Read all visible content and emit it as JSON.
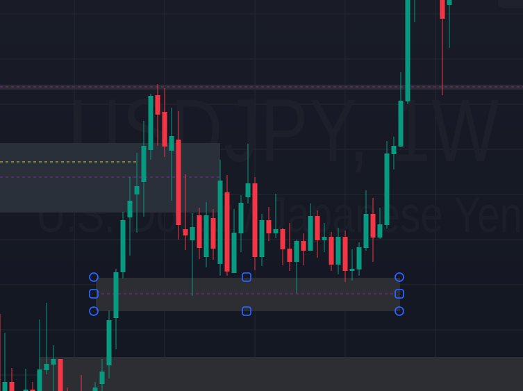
{
  "watermark": {
    "symbol": "USDJPY, 1W",
    "description": "U.S. Dollar / Japanese Yen"
  },
  "colors": {
    "up": "#089981",
    "down": "#f23645",
    "handle": "#2962ff",
    "zone_line": "#9c27b0",
    "level_line": "#ffeb3b"
  },
  "chart_data": {
    "type": "candlestick",
    "title": "",
    "ylim": [
      137.48,
      160.0
    ],
    "grid": true,
    "candles": [
      {
        "w": 0,
        "o": 141.92,
        "h": 141.92,
        "l": 136.0,
        "c": 136.4
      },
      {
        "w": 1,
        "o": 136.8,
        "h": 140.84,
        "l": 136.6,
        "c": 138.0
      },
      {
        "w": 2,
        "o": 138.0,
        "h": 138.8,
        "l": 136.8,
        "c": 137.0
      },
      {
        "w": 4,
        "o": 137.0,
        "h": 138.76,
        "l": 136.8,
        "c": 137.56
      },
      {
        "w": 5,
        "o": 137.56,
        "h": 138.0,
        "l": 137.0,
        "c": 137.2
      },
      {
        "w": 6,
        "o": 137.2,
        "h": 141.6,
        "l": 137.0,
        "c": 138.72
      },
      {
        "w": 7,
        "o": 138.68,
        "h": 142.56,
        "l": 138.44,
        "c": 139.04
      },
      {
        "w": 8,
        "o": 139.0,
        "h": 140.12,
        "l": 137.48,
        "c": 139.32
      },
      {
        "w": 9,
        "o": 139.32,
        "h": 139.32,
        "l": 136.8,
        "c": 137.0
      },
      {
        "w": 10,
        "o": 137.36,
        "h": 137.68,
        "l": 137.0,
        "c": 137.2
      },
      {
        "w": 12,
        "o": 137.36,
        "h": 138.4,
        "l": 137.0,
        "c": 137.2
      },
      {
        "w": 14,
        "o": 137.28,
        "h": 138.0,
        "l": 137.12,
        "c": 137.68
      },
      {
        "w": 15,
        "o": 137.88,
        "h": 139.32,
        "l": 137.48,
        "c": 138.6
      },
      {
        "w": 16,
        "o": 138.96,
        "h": 142.12,
        "l": 138.2,
        "c": 141.56
      },
      {
        "w": 17,
        "o": 141.68,
        "h": 144.52,
        "l": 139.88,
        "c": 144.32
      },
      {
        "w": 18,
        "o": 144.32,
        "h": 147.8,
        "l": 143.96,
        "c": 147.32
      },
      {
        "w": 19,
        "o": 147.48,
        "h": 149.8,
        "l": 145.28,
        "c": 148.44
      },
      {
        "w": 20,
        "o": 148.8,
        "h": 151.2,
        "l": 146.6,
        "c": 149.28
      },
      {
        "w": 21,
        "o": 149.52,
        "h": 153.04,
        "l": 147.52,
        "c": 151.6
      },
      {
        "w": 22,
        "o": 151.36,
        "h": 154.6,
        "l": 150.8,
        "c": 154.48
      },
      {
        "w": 23,
        "o": 154.52,
        "h": 155.16,
        "l": 151.6,
        "c": 153.4
      },
      {
        "w": 24,
        "o": 153.56,
        "h": 154.92,
        "l": 150.96,
        "c": 151.56
      },
      {
        "w": 25,
        "o": 151.32,
        "h": 153.8,
        "l": 148.44,
        "c": 152.16
      },
      {
        "w": 26,
        "o": 151.96,
        "h": 153.6,
        "l": 146.2,
        "c": 147.04
      },
      {
        "w": 27,
        "o": 146.8,
        "h": 149.96,
        "l": 145.6,
        "c": 146.44
      },
      {
        "w": 28,
        "o": 146.16,
        "h": 147.72,
        "l": 142.96,
        "c": 146.92
      },
      {
        "w": 29,
        "o": 147.6,
        "h": 148.04,
        "l": 145.08,
        "c": 145.72
      },
      {
        "w": 30,
        "o": 145.2,
        "h": 148.36,
        "l": 144.6,
        "c": 147.6
      },
      {
        "w": 31,
        "o": 147.44,
        "h": 147.96,
        "l": 145.04,
        "c": 145.68
      },
      {
        "w": 32,
        "o": 144.8,
        "h": 150.8,
        "l": 144.12,
        "c": 149.6
      },
      {
        "w": 33,
        "o": 148.92,
        "h": 149.92,
        "l": 144.12,
        "c": 144.36
      },
      {
        "w": 34,
        "o": 144.28,
        "h": 147.96,
        "l": 144.28,
        "c": 146.6
      },
      {
        "w": 35,
        "o": 146.56,
        "h": 148.76,
        "l": 145.48,
        "c": 148.32
      },
      {
        "w": 36,
        "o": 148.64,
        "h": 151.72,
        "l": 148.28,
        "c": 149.44
      },
      {
        "w": 37,
        "o": 149.44,
        "h": 149.8,
        "l": 144.44,
        "c": 145.2
      },
      {
        "w": 38,
        "o": 145.2,
        "h": 147.68,
        "l": 144.68,
        "c": 147.32
      },
      {
        "w": 39,
        "o": 147.32,
        "h": 148.08,
        "l": 146.12,
        "c": 146.56
      },
      {
        "w": 40,
        "o": 146.56,
        "h": 148.84,
        "l": 146.28,
        "c": 146.8
      },
      {
        "w": 41,
        "o": 146.8,
        "h": 146.88,
        "l": 144.72,
        "c": 145.64
      },
      {
        "w": 42,
        "o": 145.68,
        "h": 147.16,
        "l": 144.4,
        "c": 144.92
      },
      {
        "w": 43,
        "o": 144.92,
        "h": 146.2,
        "l": 143.12,
        "c": 146.12
      },
      {
        "w": 44,
        "o": 146.12,
        "h": 146.56,
        "l": 144.72,
        "c": 145.56
      },
      {
        "w": 45,
        "o": 145.56,
        "h": 148.28,
        "l": 145.56,
        "c": 147.56
      },
      {
        "w": 46,
        "o": 147.56,
        "h": 147.88,
        "l": 145.16,
        "c": 146.16
      },
      {
        "w": 47,
        "o": 146.16,
        "h": 147.16,
        "l": 145.48,
        "c": 146.36
      },
      {
        "w": 48,
        "o": 146.36,
        "h": 146.64,
        "l": 144.4,
        "c": 144.76
      },
      {
        "w": 49,
        "o": 144.76,
        "h": 146.88,
        "l": 144.2,
        "c": 146.36
      },
      {
        "w": 50,
        "o": 146.36,
        "h": 146.72,
        "l": 143.76,
        "c": 144.4
      },
      {
        "w": 51,
        "o": 144.4,
        "h": 145.64,
        "l": 143.84,
        "c": 144.52
      },
      {
        "w": 52,
        "o": 144.48,
        "h": 146.04,
        "l": 144.12,
        "c": 145.76
      },
      {
        "w": 53,
        "o": 145.72,
        "h": 149.04,
        "l": 145.56,
        "c": 147.68
      },
      {
        "w": 54,
        "o": 147.68,
        "h": 148.6,
        "l": 144.92,
        "c": 146.32
      },
      {
        "w": 55,
        "o": 146.32,
        "h": 148.04,
        "l": 146.24,
        "c": 147.08
      },
      {
        "w": 56,
        "o": 147.04,
        "h": 151.88,
        "l": 146.84,
        "c": 151.16
      },
      {
        "w": 57,
        "o": 151.12,
        "h": 152.12,
        "l": 150.24,
        "c": 151.6
      },
      {
        "w": 58,
        "o": 151.56,
        "h": 155.84,
        "l": 151.52,
        "c": 154.2
      },
      {
        "w": 59,
        "o": 154.16,
        "h": 161.2,
        "l": 154.0,
        "c": 160.8
      },
      {
        "w": 60,
        "o": 160.2,
        "h": 162.0,
        "l": 158.72,
        "c": 161.6
      },
      {
        "w": 64,
        "o": 161.2,
        "h": 161.6,
        "l": 154.52,
        "c": 158.92
      },
      {
        "w": 65,
        "o": 159.72,
        "h": 161.6,
        "l": 157.24,
        "c": 160.8
      }
    ],
    "zones": [
      {
        "name": "upper-band",
        "top": 155.12,
        "bottom": 154.84,
        "from": 0,
        "to": 76,
        "mid": 155.0,
        "fill": "#2b2d33"
      },
      {
        "name": "left-zone",
        "top": 151.76,
        "bottom": 147.76,
        "from": -1,
        "to": 32,
        "mid": 149.8,
        "fill": "#2a313b",
        "level": 150.68,
        "level_to": 20.3
      },
      {
        "name": "selected-zone",
        "top": 144.0,
        "bottom": 142.08,
        "from": 14.1,
        "to": 57.9,
        "mid": 143.08,
        "fill": "#2e2f35",
        "selected": true
      },
      {
        "name": "bottom-zone",
        "top": 139.44,
        "bottom": 130.0,
        "from": 6,
        "to": 76,
        "fill": "#2e2f35"
      }
    ]
  }
}
